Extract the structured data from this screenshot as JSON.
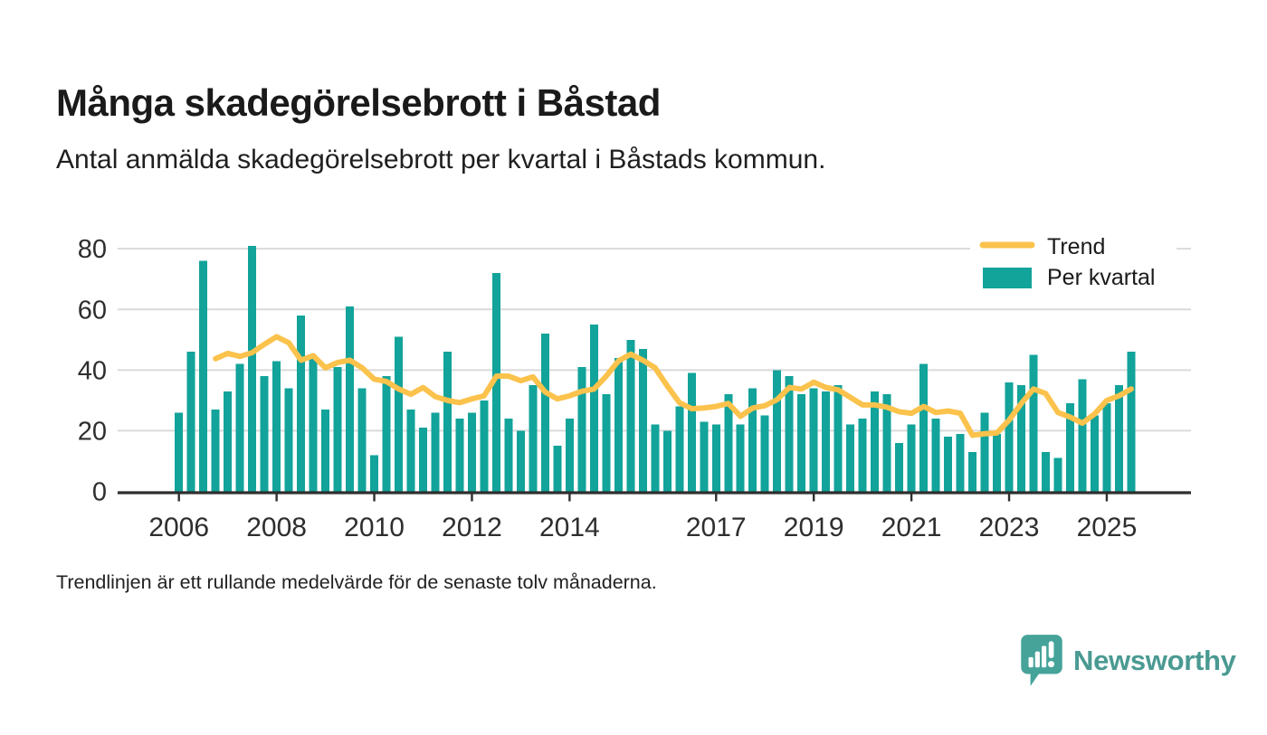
{
  "header": {
    "title": "Många skadegörelsebrott i Båstad",
    "subtitle": "Antal anmälda skadegörelsebrott per kvartal i Båstads kommun."
  },
  "legend": {
    "position": "top-right",
    "trend_label": "Trend",
    "bars_label": "Per kvartal"
  },
  "footer": {
    "note": "Trendlinjen är ett rullande medelvärde för de senaste tolv månaderna.",
    "brand": "Newsworthy"
  },
  "colors": {
    "bar": "#12a39a",
    "trend": "#fbc24c",
    "grid": "#dadada",
    "axis": "#2e2e2e",
    "tick_text": "#2e2e2e",
    "title_text": "#1a1a1a",
    "brand": "#4a9a92"
  },
  "chart_data": {
    "type": "bar",
    "title": "Många skadegörelsebrott i Båstad",
    "subtitle": "Antal anmälda skadegörelsebrott per kvartal i Båstads kommun.",
    "x_start": {
      "year": 2006,
      "quarter": 1
    },
    "x_end": {
      "year": 2025,
      "quarter": 3
    },
    "grid": "horizontal",
    "legend_position": "top-right",
    "ylim": [
      0,
      87
    ],
    "y_ticks": [
      0,
      20,
      40,
      60,
      80
    ],
    "x_ticks": [
      {
        "label": "2006",
        "quarter_index": 0
      },
      {
        "label": "2008",
        "quarter_index": 8
      },
      {
        "label": "2010",
        "quarter_index": 16
      },
      {
        "label": "2012",
        "quarter_index": 24
      },
      {
        "label": "2014",
        "quarter_index": 32
      },
      {
        "label": "2017",
        "quarter_index": 44
      },
      {
        "label": "2019",
        "quarter_index": 52
      },
      {
        "label": "2021",
        "quarter_index": 60
      },
      {
        "label": "2023",
        "quarter_index": 68
      },
      {
        "label": "2025",
        "quarter_index": 76
      }
    ],
    "series": [
      {
        "name": "Per kvartal",
        "type": "bar",
        "color": "#12a39a",
        "values": [
          26,
          46,
          76,
          27,
          33,
          42,
          81,
          38,
          43,
          34,
          58,
          44,
          27,
          41,
          61,
          34,
          12,
          38,
          51,
          27,
          21,
          26,
          46,
          24,
          26,
          30,
          72,
          24,
          20,
          35,
          52,
          15,
          24,
          41,
          55,
          32,
          44,
          50,
          47,
          22,
          20,
          28,
          39,
          23,
          22,
          32,
          22,
          34,
          25,
          40,
          38,
          32,
          34,
          33,
          35,
          22,
          24,
          33,
          32,
          16,
          22,
          42,
          24,
          18,
          19,
          13,
          26,
          19,
          36,
          35,
          45,
          13,
          11,
          29,
          37,
          25,
          29,
          35,
          46
        ]
      },
      {
        "name": "Trend",
        "type": "line",
        "color": "#fbc24c",
        "note": "rullande medelvärde, tolv månader",
        "values": [
          null,
          null,
          null,
          43.75,
          45.5,
          44.5,
          45.75,
          48.5,
          51,
          49,
          43.25,
          44.75,
          40.75,
          42.5,
          43.25,
          40.75,
          37,
          36.25,
          33.75,
          32,
          34.25,
          31.25,
          30,
          29.25,
          30.5,
          31.5,
          38,
          38,
          36.5,
          37.75,
          32.75,
          30.5,
          31.5,
          33,
          33.75,
          38,
          43,
          45.25,
          43.25,
          40.75,
          34.75,
          29.25,
          27.25,
          27.5,
          28,
          29,
          24.75,
          27.5,
          28.25,
          30.25,
          34.25,
          33.75,
          36,
          34.25,
          33.5,
          31,
          28.5,
          28.5,
          27.75,
          26.25,
          25.75,
          28,
          26,
          26.5,
          25.75,
          18.5,
          19,
          19.25,
          23.5,
          29,
          33.75,
          32.25,
          26,
          24.5,
          22.5,
          25.5,
          30,
          31.5,
          33.75
        ]
      }
    ]
  }
}
